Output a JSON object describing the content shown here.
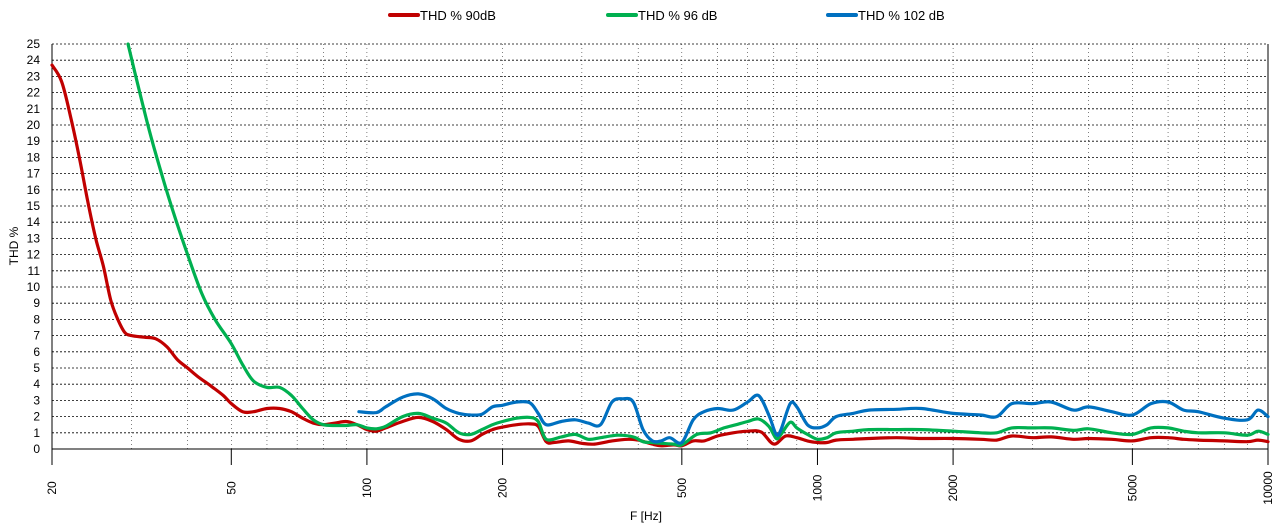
{
  "chart_data": {
    "type": "line",
    "title": "",
    "xlabel": "F [Hz]",
    "ylabel": "THD %",
    "x_scale": "log",
    "xlim": [
      20,
      10000
    ],
    "ylim": [
      0,
      25
    ],
    "grid": true,
    "legend_position": "top",
    "y_ticks": [
      "0",
      "1",
      "2",
      "3",
      "4",
      "5",
      "6",
      "7",
      "8",
      "9",
      "10",
      "11",
      "12",
      "13",
      "14",
      "15",
      "16",
      "17",
      "18",
      "19",
      "20",
      "21",
      "22",
      "23",
      "24",
      "25"
    ],
    "x_ticks": [
      {
        "value": 20,
        "label": "20"
      },
      {
        "value": 50,
        "label": "50"
      },
      {
        "value": 100,
        "label": "100"
      },
      {
        "value": 200,
        "label": "200"
      },
      {
        "value": 500,
        "label": "500"
      },
      {
        "value": 1000,
        "label": "1000"
      },
      {
        "value": 2000,
        "label": "2000"
      },
      {
        "value": 5000,
        "label": "5000"
      },
      {
        "value": 10000,
        "label": "10000"
      }
    ],
    "series": [
      {
        "name": "THD % 90dB",
        "color": "#c00000",
        "points": [
          [
            20,
            23.7
          ],
          [
            21,
            22.7
          ],
          [
            22,
            20.5
          ],
          [
            23,
            18.0
          ],
          [
            24,
            15.3
          ],
          [
            25,
            13.0
          ],
          [
            26,
            11.3
          ],
          [
            27,
            9.2
          ],
          [
            28,
            8.0
          ],
          [
            29,
            7.2
          ],
          [
            30,
            7.0
          ],
          [
            32,
            6.9
          ],
          [
            34,
            6.8
          ],
          [
            36,
            6.3
          ],
          [
            38,
            5.5
          ],
          [
            40,
            5.0
          ],
          [
            42,
            4.5
          ],
          [
            45,
            3.9
          ],
          [
            48,
            3.3
          ],
          [
            50,
            2.8
          ],
          [
            53,
            2.3
          ],
          [
            56,
            2.3
          ],
          [
            60,
            2.5
          ],
          [
            64,
            2.5
          ],
          [
            68,
            2.3
          ],
          [
            72,
            1.9
          ],
          [
            76,
            1.6
          ],
          [
            80,
            1.5
          ],
          [
            85,
            1.6
          ],
          [
            90,
            1.7
          ],
          [
            95,
            1.5
          ],
          [
            100,
            1.2
          ],
          [
            105,
            1.1
          ],
          [
            110,
            1.3
          ],
          [
            120,
            1.7
          ],
          [
            130,
            1.95
          ],
          [
            140,
            1.7
          ],
          [
            150,
            1.2
          ],
          [
            160,
            0.6
          ],
          [
            170,
            0.5
          ],
          [
            180,
            0.9
          ],
          [
            190,
            1.2
          ],
          [
            200,
            1.35
          ],
          [
            215,
            1.5
          ],
          [
            230,
            1.55
          ],
          [
            240,
            1.4
          ],
          [
            250,
            0.45
          ],
          [
            260,
            0.4
          ],
          [
            280,
            0.5
          ],
          [
            300,
            0.35
          ],
          [
            320,
            0.3
          ],
          [
            350,
            0.5
          ],
          [
            380,
            0.6
          ],
          [
            400,
            0.55
          ],
          [
            430,
            0.3
          ],
          [
            450,
            0.2
          ],
          [
            480,
            0.25
          ],
          [
            500,
            0.2
          ],
          [
            530,
            0.5
          ],
          [
            560,
            0.5
          ],
          [
            600,
            0.8
          ],
          [
            650,
            1.0
          ],
          [
            700,
            1.1
          ],
          [
            750,
            1.05
          ],
          [
            800,
            0.3
          ],
          [
            850,
            0.8
          ],
          [
            900,
            0.7
          ],
          [
            950,
            0.5
          ],
          [
            1000,
            0.4
          ],
          [
            1050,
            0.4
          ],
          [
            1100,
            0.55
          ],
          [
            1200,
            0.6
          ],
          [
            1300,
            0.65
          ],
          [
            1500,
            0.7
          ],
          [
            1700,
            0.65
          ],
          [
            2000,
            0.65
          ],
          [
            2300,
            0.6
          ],
          [
            2500,
            0.55
          ],
          [
            2700,
            0.8
          ],
          [
            3000,
            0.7
          ],
          [
            3300,
            0.75
          ],
          [
            3700,
            0.6
          ],
          [
            4000,
            0.65
          ],
          [
            4500,
            0.6
          ],
          [
            5000,
            0.5
          ],
          [
            5500,
            0.7
          ],
          [
            6000,
            0.7
          ],
          [
            6500,
            0.6
          ],
          [
            7000,
            0.55
          ],
          [
            8000,
            0.5
          ],
          [
            9000,
            0.45
          ],
          [
            9500,
            0.55
          ],
          [
            10000,
            0.45
          ]
        ]
      },
      {
        "name": "THD % 96 dB",
        "color": "#00b050",
        "points": [
          [
            29.5,
            25.0
          ],
          [
            31,
            22.5
          ],
          [
            33,
            19.5
          ],
          [
            35,
            17.0
          ],
          [
            37,
            14.8
          ],
          [
            40,
            12.0
          ],
          [
            43,
            9.6
          ],
          [
            46,
            8.0
          ],
          [
            50,
            6.5
          ],
          [
            53,
            5.2
          ],
          [
            56,
            4.2
          ],
          [
            60,
            3.8
          ],
          [
            64,
            3.8
          ],
          [
            68,
            3.3
          ],
          [
            72,
            2.5
          ],
          [
            76,
            1.8
          ],
          [
            80,
            1.5
          ],
          [
            85,
            1.45
          ],
          [
            90,
            1.45
          ],
          [
            95,
            1.5
          ],
          [
            100,
            1.3
          ],
          [
            105,
            1.25
          ],
          [
            110,
            1.4
          ],
          [
            120,
            2.0
          ],
          [
            130,
            2.2
          ],
          [
            140,
            1.9
          ],
          [
            150,
            1.6
          ],
          [
            160,
            1.0
          ],
          [
            170,
            0.9
          ],
          [
            180,
            1.2
          ],
          [
            190,
            1.5
          ],
          [
            200,
            1.7
          ],
          [
            215,
            1.9
          ],
          [
            230,
            1.95
          ],
          [
            240,
            1.7
          ],
          [
            250,
            0.6
          ],
          [
            270,
            0.75
          ],
          [
            290,
            0.9
          ],
          [
            310,
            0.6
          ],
          [
            330,
            0.7
          ],
          [
            360,
            0.85
          ],
          [
            390,
            0.75
          ],
          [
            410,
            0.45
          ],
          [
            430,
            0.4
          ],
          [
            450,
            0.35
          ],
          [
            480,
            0.3
          ],
          [
            500,
            0.25
          ],
          [
            540,
            0.9
          ],
          [
            580,
            1.0
          ],
          [
            620,
            1.3
          ],
          [
            660,
            1.5
          ],
          [
            700,
            1.7
          ],
          [
            740,
            1.85
          ],
          [
            780,
            1.4
          ],
          [
            810,
            0.65
          ],
          [
            830,
            0.9
          ],
          [
            870,
            1.65
          ],
          [
            900,
            1.3
          ],
          [
            950,
            0.9
          ],
          [
            1000,
            0.6
          ],
          [
            1050,
            0.7
          ],
          [
            1100,
            1.0
          ],
          [
            1200,
            1.1
          ],
          [
            1300,
            1.2
          ],
          [
            1500,
            1.2
          ],
          [
            1700,
            1.2
          ],
          [
            2000,
            1.1
          ],
          [
            2300,
            1.0
          ],
          [
            2500,
            1.0
          ],
          [
            2700,
            1.3
          ],
          [
            3000,
            1.3
          ],
          [
            3300,
            1.3
          ],
          [
            3700,
            1.15
          ],
          [
            4000,
            1.25
          ],
          [
            4500,
            1.0
          ],
          [
            5000,
            0.9
          ],
          [
            5500,
            1.3
          ],
          [
            6000,
            1.3
          ],
          [
            6500,
            1.1
          ],
          [
            7000,
            1.0
          ],
          [
            8000,
            1.0
          ],
          [
            9000,
            0.85
          ],
          [
            9500,
            1.1
          ],
          [
            10000,
            0.9
          ]
        ]
      },
      {
        "name": "THD % 102 dB",
        "color": "#0070c0",
        "points": [
          [
            96,
            2.3
          ],
          [
            105,
            2.25
          ],
          [
            110,
            2.6
          ],
          [
            120,
            3.2
          ],
          [
            130,
            3.4
          ],
          [
            140,
            3.1
          ],
          [
            150,
            2.5
          ],
          [
            160,
            2.2
          ],
          [
            170,
            2.1
          ],
          [
            180,
            2.15
          ],
          [
            190,
            2.6
          ],
          [
            200,
            2.7
          ],
          [
            215,
            2.9
          ],
          [
            230,
            2.85
          ],
          [
            240,
            2.2
          ],
          [
            250,
            1.5
          ],
          [
            270,
            1.7
          ],
          [
            290,
            1.8
          ],
          [
            310,
            1.6
          ],
          [
            330,
            1.5
          ],
          [
            350,
            2.9
          ],
          [
            370,
            3.1
          ],
          [
            390,
            2.9
          ],
          [
            410,
            1.2
          ],
          [
            430,
            0.5
          ],
          [
            450,
            0.5
          ],
          [
            470,
            0.7
          ],
          [
            500,
            0.4
          ],
          [
            530,
            1.8
          ],
          [
            560,
            2.3
          ],
          [
            600,
            2.5
          ],
          [
            650,
            2.4
          ],
          [
            700,
            2.9
          ],
          [
            740,
            3.3
          ],
          [
            780,
            2.1
          ],
          [
            810,
            0.9
          ],
          [
            830,
            1.2
          ],
          [
            870,
            2.8
          ],
          [
            900,
            2.6
          ],
          [
            950,
            1.5
          ],
          [
            1000,
            1.3
          ],
          [
            1050,
            1.5
          ],
          [
            1100,
            2.0
          ],
          [
            1200,
            2.2
          ],
          [
            1300,
            2.4
          ],
          [
            1500,
            2.45
          ],
          [
            1700,
            2.5
          ],
          [
            2000,
            2.2
          ],
          [
            2300,
            2.1
          ],
          [
            2500,
            2.0
          ],
          [
            2700,
            2.8
          ],
          [
            3000,
            2.8
          ],
          [
            3300,
            2.9
          ],
          [
            3700,
            2.4
          ],
          [
            4000,
            2.6
          ],
          [
            4500,
            2.3
          ],
          [
            5000,
            2.1
          ],
          [
            5500,
            2.8
          ],
          [
            6000,
            2.9
          ],
          [
            6500,
            2.4
          ],
          [
            7000,
            2.3
          ],
          [
            8000,
            1.9
          ],
          [
            9000,
            1.8
          ],
          [
            9500,
            2.4
          ],
          [
            10000,
            2.0
          ]
        ]
      }
    ]
  }
}
